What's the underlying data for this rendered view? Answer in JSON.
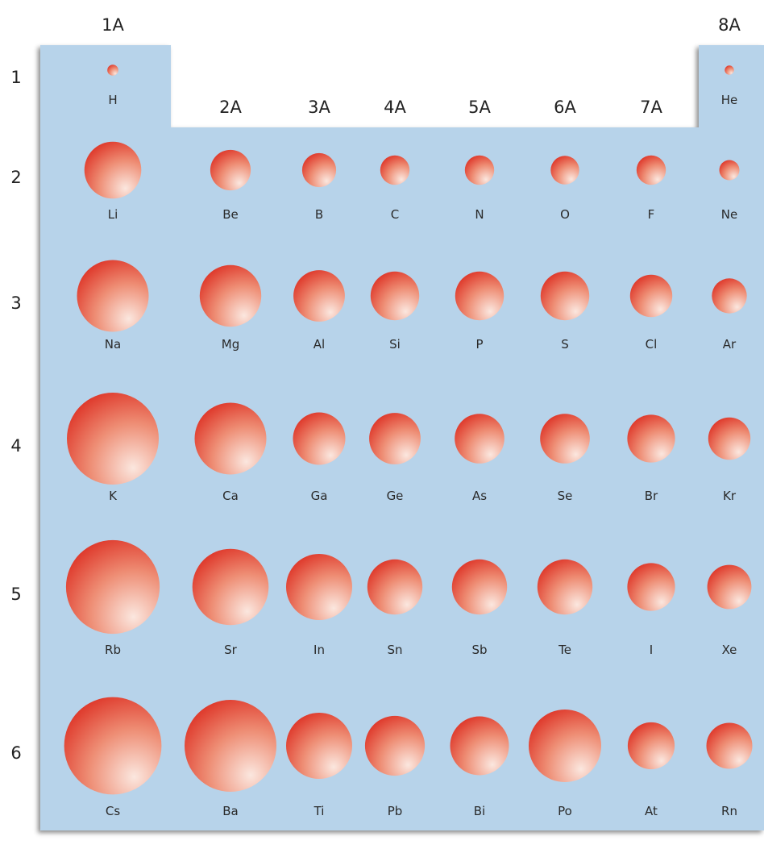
{
  "groups": [
    "1A",
    "2A",
    "3A",
    "4A",
    "5A",
    "6A",
    "7A",
    "8A"
  ],
  "periods": [
    "1",
    "2",
    "3",
    "4",
    "5",
    "6"
  ],
  "elements": [
    {
      "symbol": "H",
      "group": 0,
      "period": 0,
      "size": 0.12
    },
    {
      "symbol": "He",
      "group": 7,
      "period": 0,
      "size": 0.1
    },
    {
      "symbol": "Li",
      "group": 0,
      "period": 1,
      "size": 0.62
    },
    {
      "symbol": "Be",
      "group": 1,
      "period": 1,
      "size": 0.44
    },
    {
      "symbol": "B",
      "group": 2,
      "period": 1,
      "size": 0.37
    },
    {
      "symbol": "C",
      "group": 3,
      "period": 1,
      "size": 0.32
    },
    {
      "symbol": "N",
      "group": 4,
      "period": 1,
      "size": 0.32
    },
    {
      "symbol": "O",
      "group": 5,
      "period": 1,
      "size": 0.31
    },
    {
      "symbol": "F",
      "group": 6,
      "period": 1,
      "size": 0.32
    },
    {
      "symbol": "Ne",
      "group": 7,
      "period": 1,
      "size": 0.22
    },
    {
      "symbol": "Na",
      "group": 0,
      "period": 2,
      "size": 0.78
    },
    {
      "symbol": "Mg",
      "group": 1,
      "period": 2,
      "size": 0.67
    },
    {
      "symbol": "Al",
      "group": 2,
      "period": 2,
      "size": 0.56
    },
    {
      "symbol": "Si",
      "group": 3,
      "period": 2,
      "size": 0.53
    },
    {
      "symbol": "P",
      "group": 4,
      "period": 2,
      "size": 0.53
    },
    {
      "symbol": "S",
      "group": 5,
      "period": 2,
      "size": 0.53
    },
    {
      "symbol": "Cl",
      "group": 6,
      "period": 2,
      "size": 0.46
    },
    {
      "symbol": "Ar",
      "group": 7,
      "period": 2,
      "size": 0.38
    },
    {
      "symbol": "K",
      "group": 0,
      "period": 3,
      "size": 1.0
    },
    {
      "symbol": "Ca",
      "group": 1,
      "period": 3,
      "size": 0.78
    },
    {
      "symbol": "Ga",
      "group": 2,
      "period": 3,
      "size": 0.57
    },
    {
      "symbol": "Ge",
      "group": 3,
      "period": 3,
      "size": 0.56
    },
    {
      "symbol": "As",
      "group": 4,
      "period": 3,
      "size": 0.54
    },
    {
      "symbol": "Se",
      "group": 5,
      "period": 3,
      "size": 0.54
    },
    {
      "symbol": "Br",
      "group": 6,
      "period": 3,
      "size": 0.52
    },
    {
      "symbol": "Kr",
      "group": 7,
      "period": 3,
      "size": 0.46
    },
    {
      "symbol": "Rb",
      "group": 0,
      "period": 4,
      "size": 1.02
    },
    {
      "symbol": "Sr",
      "group": 1,
      "period": 4,
      "size": 0.83
    },
    {
      "symbol": "In",
      "group": 2,
      "period": 4,
      "size": 0.72
    },
    {
      "symbol": "Sn",
      "group": 3,
      "period": 4,
      "size": 0.6
    },
    {
      "symbol": "Sb",
      "group": 4,
      "period": 4,
      "size": 0.6
    },
    {
      "symbol": "Te",
      "group": 5,
      "period": 4,
      "size": 0.6
    },
    {
      "symbol": "I",
      "group": 6,
      "period": 4,
      "size": 0.52
    },
    {
      "symbol": "Xe",
      "group": 7,
      "period": 4,
      "size": 0.48
    },
    {
      "symbol": "Cs",
      "group": 0,
      "period": 5,
      "size": 1.06
    },
    {
      "symbol": "Ba",
      "group": 1,
      "period": 5,
      "size": 1.0
    },
    {
      "symbol": "Ti",
      "group": 2,
      "period": 5,
      "size": 0.72
    },
    {
      "symbol": "Pb",
      "group": 3,
      "period": 5,
      "size": 0.65
    },
    {
      "symbol": "Bi",
      "group": 4,
      "period": 5,
      "size": 0.64
    },
    {
      "symbol": "Po",
      "group": 5,
      "period": 5,
      "size": 0.79
    },
    {
      "symbol": "At",
      "group": 6,
      "period": 5,
      "size": 0.51
    },
    {
      "symbol": "Rn",
      "group": 7,
      "period": 5,
      "size": 0.5
    }
  ],
  "colors": {
    "panel": "#b7d3ea",
    "sphere_light": "#fbe7df",
    "sphere_mid": "#ee8d74",
    "sphere_dark": "#df3b2d"
  }
}
